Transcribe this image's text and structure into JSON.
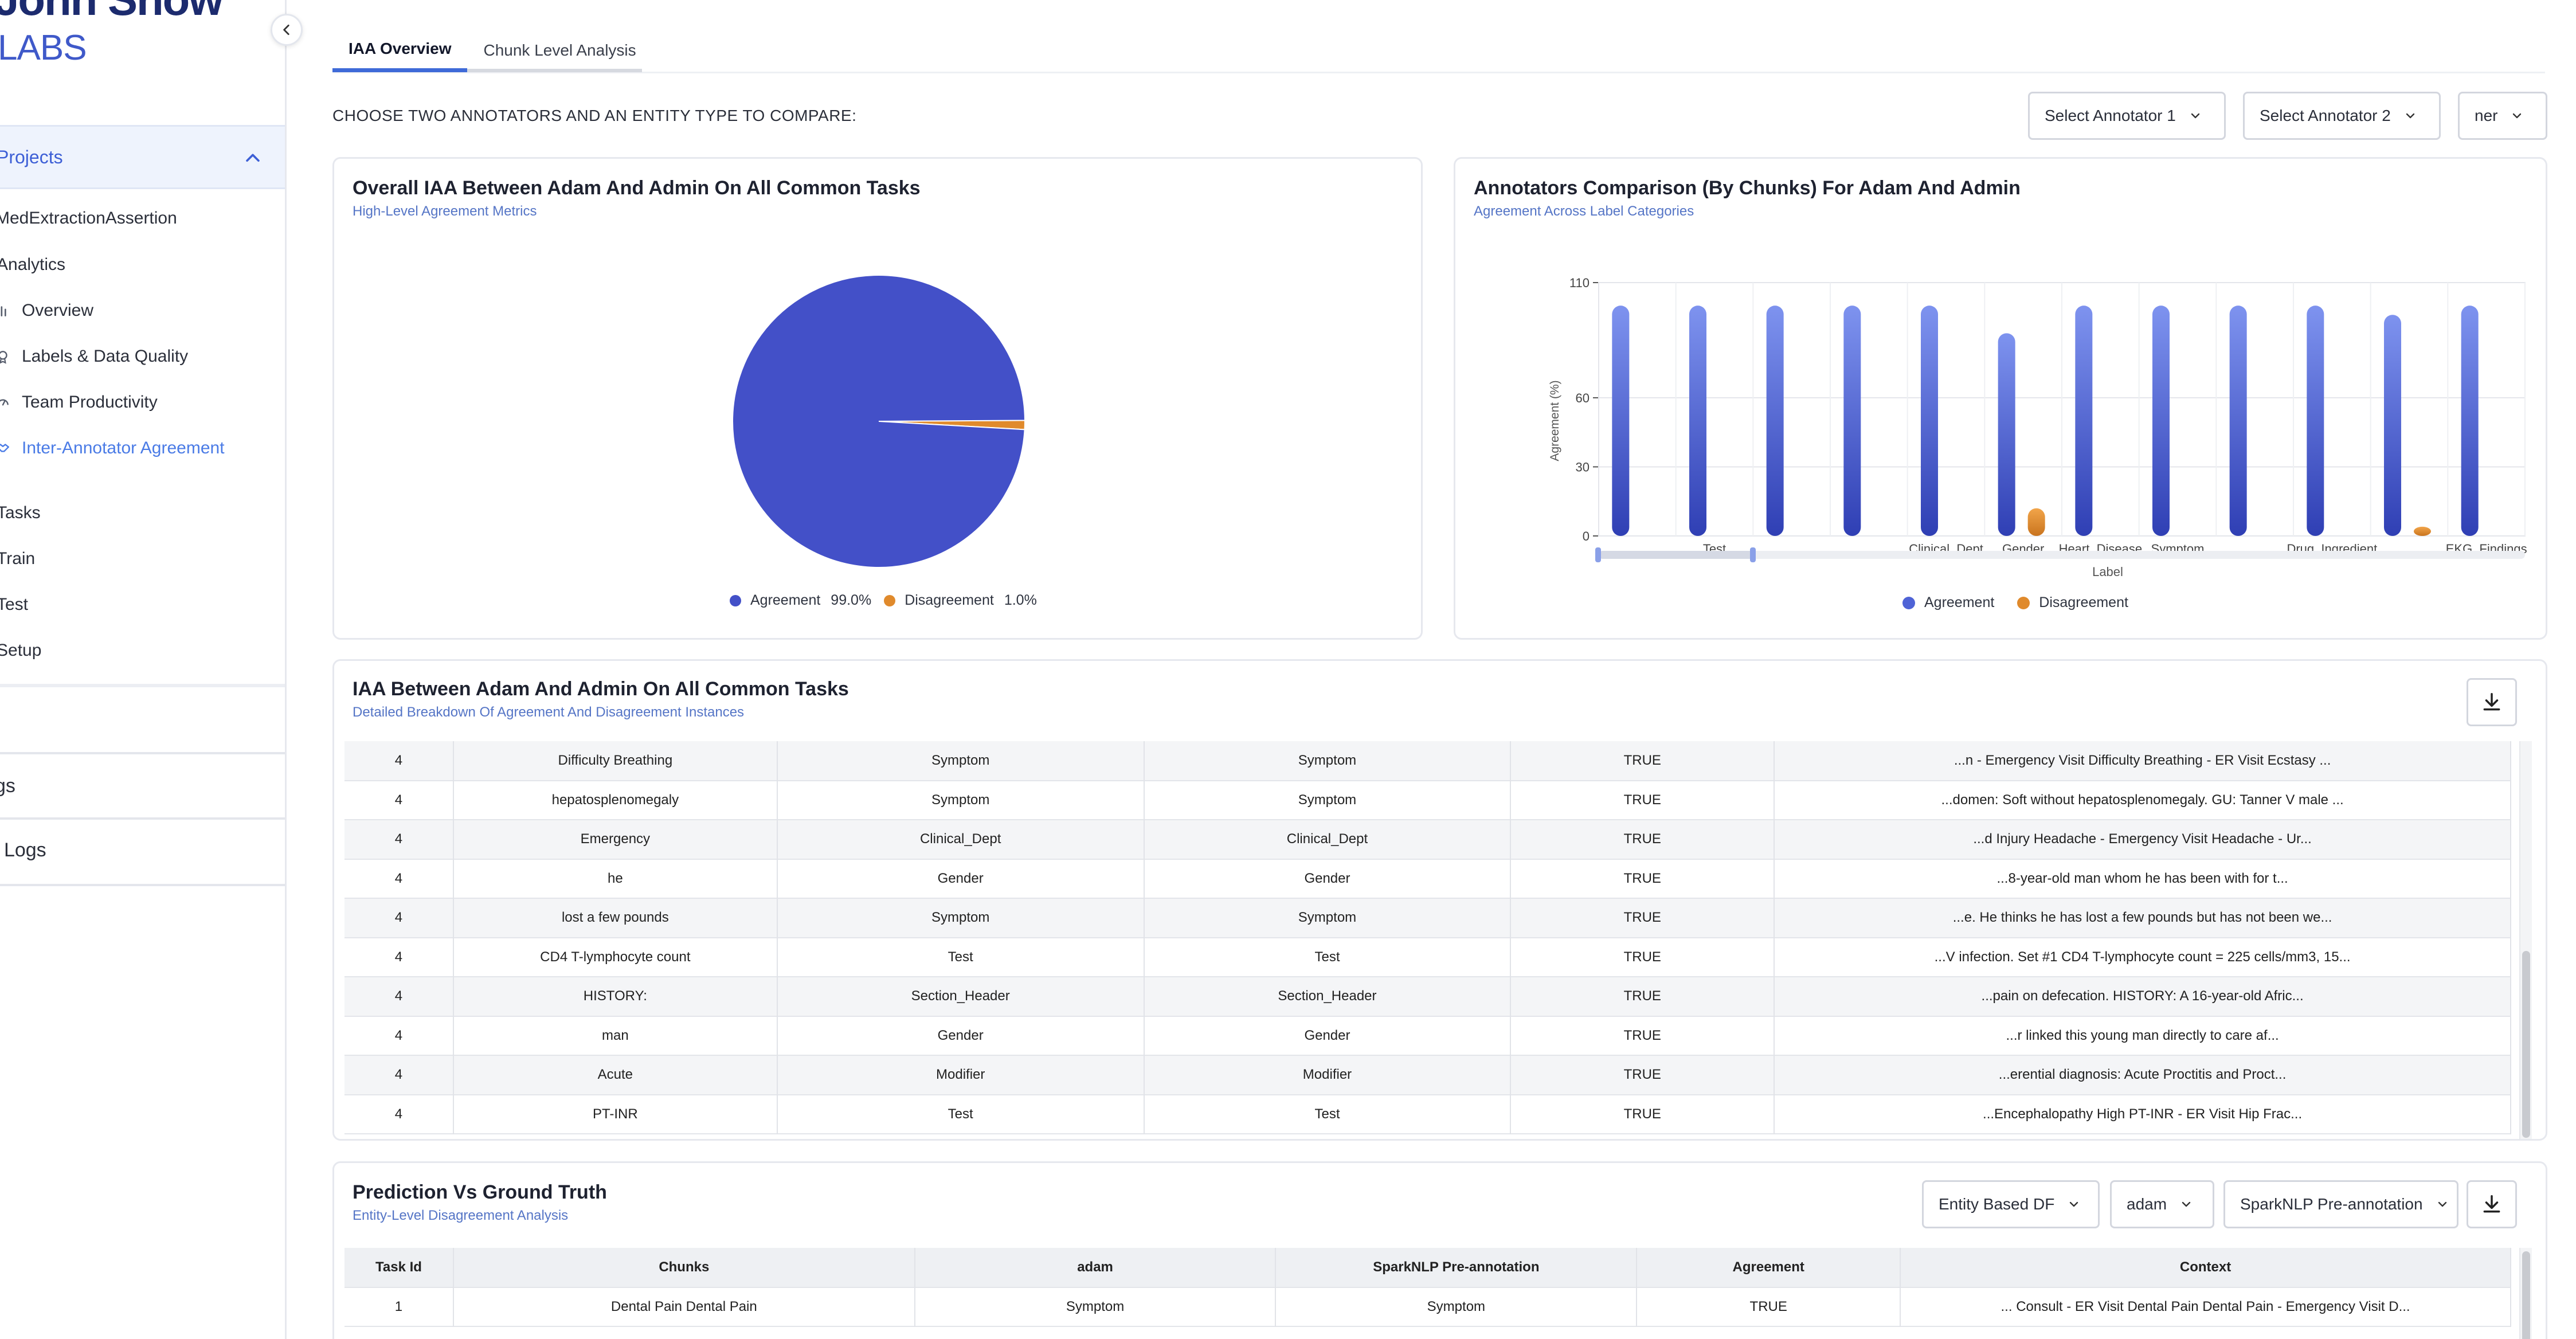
{
  "brand": {
    "line1": "John Snow",
    "line2": "LABS"
  },
  "sidebar": {
    "section_label": "Projects",
    "items": [
      {
        "label": "MedExtractionAssertion",
        "icon": "none"
      },
      {
        "label": "Analytics",
        "icon": "none"
      },
      {
        "label": "Overview",
        "icon": "bar-chart-icon"
      },
      {
        "label": "Labels & Data Quality",
        "icon": "tag-icon"
      },
      {
        "label": "Team Productivity",
        "icon": "gauge-icon"
      },
      {
        "label": "Inter-Annotator Agreement",
        "icon": "handshake-icon"
      },
      {
        "label": "Tasks",
        "icon": "none"
      },
      {
        "label": "Train",
        "icon": "none"
      },
      {
        "label": "Test",
        "icon": "none"
      },
      {
        "label": "Setup",
        "icon": "none"
      }
    ],
    "bottom_items": [
      {
        "label": "Settings"
      },
      {
        "label": "Audit Logs"
      }
    ]
  },
  "tabs": [
    {
      "label": "IAA Overview",
      "active": true
    },
    {
      "label": "Chunk Level Analysis",
      "active": false
    }
  ],
  "controls": {
    "choose_label": "CHOOSE TWO ANNOTATORS AND AN ENTITY TYPE TO COMPARE:",
    "annotator1": "Select Annotator 1",
    "annotator2": "Select Annotator 2",
    "entity": "ner"
  },
  "pie_card": {
    "title": "Overall IAA Between Adam And Admin On All Common Tasks",
    "subtitle": "High-Level Agreement Metrics",
    "legend": [
      {
        "label": "Agreement",
        "value": "99.0%",
        "color": "#4350c8"
      },
      {
        "label": "Disagreement",
        "value": "1.0%",
        "color": "#e08a2c"
      }
    ]
  },
  "bar_card": {
    "title": "Annotators Comparison (By Chunks) For Adam And Admin",
    "subtitle": "Agreement Across Label Categories",
    "ylabel": "Agreement (%)",
    "xlabel": "Label",
    "legend": [
      {
        "label": "Agreement",
        "color": "#4f63d6"
      },
      {
        "label": "Disagreement",
        "color": "#e08a2c"
      }
    ]
  },
  "chart_data": [
    {
      "type": "pie",
      "title": "Overall IAA Between Adam And Admin On All Common Tasks",
      "labels": [
        "Agreement",
        "Disagreement"
      ],
      "values": [
        99.0,
        1.0
      ],
      "colors": [
        "#4350c8",
        "#e08a2c"
      ],
      "legend_position": "bottom"
    },
    {
      "type": "bar",
      "title": "Annotators Comparison (By Chunks) For Adam And Admin",
      "xlabel": "Label",
      "ylabel": "Agreement (%)",
      "ylim": [
        0,
        110
      ],
      "yticks": [
        0,
        30,
        60,
        110
      ],
      "categories": [
        "",
        "Test",
        "",
        "",
        "Clinical_Dept",
        "Gender",
        "Heart_Disease",
        "Symptom",
        "",
        "Drug_Ingredient",
        "",
        "EKG_Findings"
      ],
      "series": [
        {
          "name": "Agreement",
          "color": "#4f63d6",
          "values": [
            100,
            100,
            100,
            100,
            100,
            88,
            100,
            100,
            100,
            100,
            96,
            100
          ]
        },
        {
          "name": "Disagreement",
          "color": "#e08a2c",
          "values": [
            0,
            0,
            0,
            0,
            0,
            12,
            0,
            0,
            0,
            0,
            4,
            0
          ]
        }
      ],
      "grid": true,
      "legend_position": "bottom"
    }
  ],
  "iaa_table": {
    "title": "IAA Between Adam And Admin On All Common Tasks",
    "subtitle": "Detailed Breakdown Of Agreement And Disagreement Instances",
    "rows": [
      [
        "4",
        "Difficulty Breathing",
        "Symptom",
        "Symptom",
        "TRUE",
        "...n - Emergency Visit Difficulty Breathing - ER Visit Ecstasy ..."
      ],
      [
        "4",
        "hepatosplenomegaly",
        "Symptom",
        "Symptom",
        "TRUE",
        "...domen: Soft without hepatosplenomegaly. GU: Tanner V male ..."
      ],
      [
        "4",
        "Emergency",
        "Clinical_Dept",
        "Clinical_Dept",
        "TRUE",
        "...d Injury Headache - Emergency Visit Headache - Ur..."
      ],
      [
        "4",
        "he",
        "Gender",
        "Gender",
        "TRUE",
        "...8-year-old man whom he has been with for t..."
      ],
      [
        "4",
        "lost a few pounds",
        "Symptom",
        "Symptom",
        "TRUE",
        "...e. He thinks he has lost a few pounds but has not been we..."
      ],
      [
        "4",
        "CD4 T-lymphocyte count",
        "Test",
        "Test",
        "TRUE",
        "...V infection. Set #1 CD4 T-lymphocyte count = 225 cells/mm3, 15..."
      ],
      [
        "4",
        "HISTORY:",
        "Section_Header",
        "Section_Header",
        "TRUE",
        "...pain on defecation. HISTORY: A 16-year-old Afric..."
      ],
      [
        "4",
        "man",
        "Gender",
        "Gender",
        "TRUE",
        "...r linked this young man directly to care af..."
      ],
      [
        "4",
        "Acute",
        "Modifier",
        "Modifier",
        "TRUE",
        "...erential diagnosis: Acute Proctitis and Proct..."
      ],
      [
        "4",
        "PT-INR",
        "Test",
        "Test",
        "TRUE",
        "...Encephalopathy High PT-INR - ER Visit Hip Frac..."
      ]
    ]
  },
  "pred_table": {
    "title": "Prediction Vs Ground Truth",
    "subtitle": "Entity-Level Disagreement Analysis",
    "controls": {
      "mode": "Entity Based DF",
      "annotator": "adam",
      "preannotation": "SparkNLP Pre-annotation"
    },
    "headers": [
      "Task Id",
      "Chunks",
      "adam",
      "SparkNLP Pre-annotation",
      "Agreement",
      "Context"
    ],
    "rows": [
      [
        "1",
        "Dental Pain Dental Pain",
        "Symptom",
        "Symptom",
        "TRUE",
        "... Consult - ER Visit Dental Pain Dental Pain - Emergency Visit D..."
      ]
    ]
  }
}
